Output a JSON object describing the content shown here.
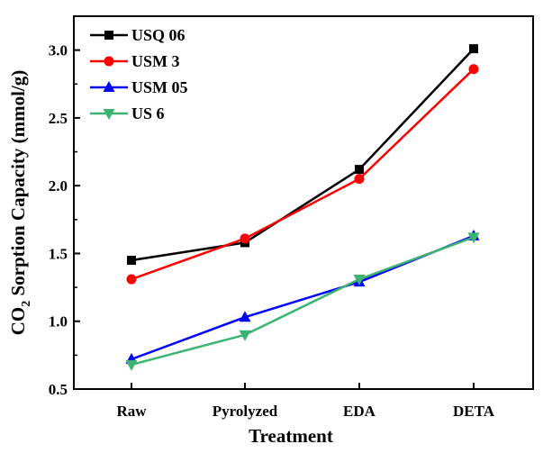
{
  "chart_data": {
    "type": "line",
    "xlabel": "Treatment",
    "ylabel": {
      "prefix": "CO",
      "subscript": "2",
      "suffix": " Sorption Capacity (mmol/g)"
    },
    "categories": [
      "Raw",
      "Pyrolyzed",
      "EDA",
      "DETA"
    ],
    "ylim": [
      0.5,
      3.25
    ],
    "yticks": [
      "0.5",
      "1.0",
      "1.5",
      "2.0",
      "2.5",
      "3.0"
    ],
    "legend_position": "top-left",
    "series": [
      {
        "name": "USQ 06",
        "color": "#000000",
        "marker": "square",
        "values": [
          1.45,
          1.58,
          2.12,
          3.01
        ]
      },
      {
        "name": "USM 3",
        "color": "#ff0000",
        "marker": "circle",
        "values": [
          1.31,
          1.61,
          2.05,
          2.86
        ]
      },
      {
        "name": "USM 05",
        "color": "#0000ff",
        "marker": "triangle-up",
        "values": [
          0.72,
          1.03,
          1.29,
          1.63
        ]
      },
      {
        "name": "US 6",
        "color": "#3cb371",
        "marker": "triangle-down",
        "values": [
          0.68,
          0.9,
          1.31,
          1.62
        ]
      }
    ]
  }
}
